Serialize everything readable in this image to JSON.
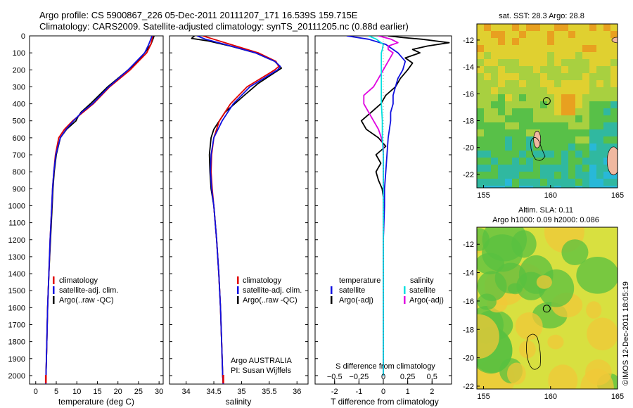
{
  "header": {
    "line1": "Argo profile: CS 5900867_226 05-Dec-2011 20111207_171 16.539S 159.715E",
    "line2": "Climatology: CARS2009. Satellite-adjusted climatology: synTS_20111205.nc (0.88d earlier)"
  },
  "footer": {
    "stamp": "©IMOS 12-Dec-2011 18:05:19",
    "argo_source": "Argo AUSTRALIA",
    "pi": "PI: Susan Wijffels"
  },
  "colors": {
    "climatology": "#e00000",
    "satellite": "#1010e0",
    "argo": "#000000",
    "sal_satellite": "#00e0e0",
    "sal_argo": "#e000e0"
  },
  "chart_data": [
    {
      "id": "temperature",
      "type": "line",
      "xlabel": "temperature (deg C)",
      "xlim": [
        -1.5,
        31
      ],
      "xticks": [
        0,
        5,
        10,
        15,
        20,
        25,
        30
      ],
      "ylim": [
        2050,
        0
      ],
      "yticks": [
        0,
        100,
        200,
        300,
        400,
        500,
        600,
        700,
        800,
        900,
        1000,
        1100,
        1200,
        1300,
        1400,
        1500,
        1600,
        1700,
        1800,
        1900,
        2000
      ],
      "legend": [
        "climatology",
        "satellite-adj. clim.",
        "Argo(..raw -QC)"
      ],
      "series": [
        {
          "name": "climatology",
          "depth": [
            0,
            50,
            100,
            200,
            300,
            400,
            450,
            500,
            550,
            600,
            700,
            800,
            900,
            1000,
            1200,
            1400,
            1600,
            1800,
            2000,
            2050
          ],
          "values": [
            28.5,
            28.0,
            27.0,
            23.0,
            18.0,
            14.0,
            11.5,
            9.0,
            7.0,
            5.6,
            4.8,
            4.4,
            4.1,
            3.9,
            3.5,
            3.2,
            2.9,
            2.7,
            2.5,
            2.45
          ]
        },
        {
          "name": "satellite-adj. clim.",
          "depth": [
            0,
            50,
            100,
            200,
            300,
            400,
            450,
            500,
            550,
            600,
            700,
            800,
            900,
            1000,
            1200,
            1400,
            1600,
            1800,
            2000,
            2050
          ],
          "values": [
            28.3,
            27.5,
            26.5,
            22.5,
            17.8,
            13.8,
            11.2,
            9.2,
            7.4,
            6.0,
            4.9,
            4.4,
            4.1,
            3.9,
            3.5,
            3.2,
            2.9,
            2.7,
            2.5,
            2.45
          ]
        },
        {
          "name": "Argo(..raw -QC)",
          "depth": [
            0,
            20,
            50,
            100,
            150,
            200,
            300,
            400,
            450,
            480,
            500,
            550,
            600,
            700,
            800,
            900,
            1000,
            1200,
            1400,
            1600,
            1800,
            2000,
            2050
          ],
          "values": [
            28.8,
            28.5,
            28.0,
            26.5,
            24.8,
            22.5,
            17.5,
            13.3,
            11.0,
            10.2,
            9.8,
            7.5,
            6.0,
            5.0,
            4.5,
            4.2,
            4.0,
            3.6,
            3.2,
            2.9,
            2.7,
            2.5,
            2.45
          ]
        }
      ]
    },
    {
      "id": "salinity",
      "type": "line",
      "xlabel": "salinity",
      "xlim": [
        33.7,
        36.2
      ],
      "xticks": [
        34,
        34.5,
        35,
        35.5,
        36
      ],
      "ylim": [
        2050,
        0
      ],
      "legend": [
        "climatology",
        "satellite-adj. clim.",
        "Argo(..raw -QC)"
      ],
      "series": [
        {
          "name": "climatology",
          "depth": [
            0,
            20,
            50,
            100,
            150,
            180,
            200,
            250,
            300,
            400,
            500,
            600,
            700,
            800,
            900,
            1000,
            1200,
            1400,
            1600,
            1800,
            2000,
            2050
          ],
          "values": [
            34.3,
            34.5,
            34.8,
            35.3,
            35.62,
            35.67,
            35.6,
            35.35,
            35.1,
            34.8,
            34.6,
            34.5,
            34.46,
            34.45,
            34.47,
            34.5,
            34.55,
            34.59,
            34.62,
            34.64,
            34.66,
            34.67
          ]
        },
        {
          "name": "satellite-adj. clim.",
          "depth": [
            0,
            20,
            50,
            100,
            150,
            180,
            200,
            250,
            300,
            400,
            500,
            600,
            700,
            800,
            900,
            1000,
            1200,
            1400,
            1600,
            1800,
            2000,
            2050
          ],
          "values": [
            34.2,
            34.35,
            34.7,
            35.25,
            35.6,
            35.7,
            35.65,
            35.4,
            35.15,
            34.85,
            34.65,
            34.5,
            34.45,
            34.44,
            34.46,
            34.5,
            34.55,
            34.59,
            34.62,
            34.64,
            34.66,
            34.67
          ]
        },
        {
          "name": "Argo(..raw -QC)",
          "depth": [
            0,
            15,
            30,
            60,
            100,
            150,
            190,
            220,
            280,
            350,
            450,
            550,
            600,
            700,
            800,
            900,
            1000,
            1200,
            1400,
            1600,
            1800,
            2000,
            2050
          ],
          "values": [
            34.15,
            34.1,
            34.4,
            34.8,
            35.25,
            35.6,
            35.72,
            35.58,
            35.3,
            35.05,
            34.7,
            34.5,
            34.45,
            34.42,
            34.43,
            34.45,
            34.5,
            34.55,
            34.59,
            34.62,
            34.64,
            34.66,
            34.67
          ]
        }
      ]
    },
    {
      "id": "differences",
      "type": "line",
      "xlabel": "T difference from climatology",
      "xlabel_top": "S difference from climatology",
      "xlim_T": [
        -2.8,
        2.8
      ],
      "xticks_T": [
        -2,
        -1,
        0,
        1,
        2
      ],
      "xticks_S": [
        -0.5,
        -0.25,
        0,
        0.25,
        0.5
      ],
      "ylim": [
        2050,
        0
      ],
      "legend_headers": [
        "temperature",
        "salinity"
      ],
      "legend": [
        "satellite",
        "Argo(-adj)",
        "satellite",
        "Argo(-adj)"
      ],
      "series": [
        {
          "name": "satellite",
          "quantity": "temperature",
          "depth": [
            0,
            20,
            50,
            100,
            150,
            200,
            250,
            300,
            350,
            400,
            450,
            500,
            550,
            600,
            700,
            800,
            900,
            1000,
            1200,
            1500,
            2000
          ],
          "values": [
            -1.5,
            -0.6,
            0.1,
            0.6,
            0.9,
            0.8,
            0.6,
            0.5,
            0.4,
            0.4,
            0.3,
            0.3,
            0.25,
            0.2,
            0.15,
            0.1,
            0.05,
            0.05,
            0.0,
            0.0,
            0.0
          ]
        },
        {
          "name": "Argo(-adj)",
          "quantity": "temperature",
          "depth": [
            0,
            10,
            20,
            40,
            60,
            80,
            100,
            130,
            160,
            200,
            250,
            300,
            350,
            400,
            450,
            500,
            550,
            600,
            650,
            700,
            750,
            800,
            850,
            900,
            950,
            1000,
            1200,
            1500,
            2000
          ],
          "values": [
            0.2,
            0.8,
            1.6,
            2.7,
            1.8,
            1.2,
            1.5,
            0.9,
            1.2,
            1.0,
            0.7,
            0.5,
            0.1,
            -0.1,
            -0.5,
            -0.9,
            -0.7,
            -0.2,
            0.1,
            -0.3,
            -0.1,
            -0.3,
            -0.2,
            -0.05,
            0.0,
            0.02,
            0.0,
            0.0,
            0.0
          ]
        },
        {
          "name": "satellite",
          "quantity": "salinity",
          "depth": [
            0,
            20,
            50,
            80,
            100,
            150,
            200,
            300,
            400,
            500,
            600,
            700,
            800,
            900,
            1000,
            1200,
            1500,
            2000
          ],
          "values": [
            -0.15,
            -0.07,
            0.0,
            -0.01,
            -0.02,
            -0.02,
            -0.02,
            -0.02,
            -0.02,
            -0.01,
            -0.01,
            0.0,
            0.0,
            0.0,
            0.0,
            0.0,
            0.0,
            0.0
          ]
        },
        {
          "name": "Argo(-adj)",
          "quantity": "salinity",
          "depth": [
            0,
            20,
            40,
            60,
            80,
            100,
            150,
            200,
            250,
            300,
            350,
            400,
            450,
            500,
            550,
            600,
            650,
            700,
            800,
            900,
            1000,
            1200,
            1500,
            2000
          ],
          "values": [
            -0.05,
            0.08,
            0.15,
            0.05,
            0.05,
            0.1,
            0.05,
            0.0,
            -0.05,
            -0.1,
            -0.2,
            -0.2,
            -0.15,
            -0.1,
            -0.05,
            -0.02,
            0.0,
            0.0,
            0.0,
            0.0,
            0.0,
            0.0,
            0.0,
            0.0
          ]
        }
      ]
    }
  ],
  "maps": {
    "sst": {
      "title": "sat. SST: 28.3  Argo: 28.8",
      "lon_ticks": [
        155,
        160,
        165
      ],
      "lat_ticks": [
        -12,
        -14,
        -16,
        -18,
        -20,
        -22
      ],
      "lon_range": [
        154.5,
        165
      ],
      "lat_range": [
        -10.8,
        -23
      ],
      "argo_position": {
        "lon": 159.715,
        "lat": -16.539
      }
    },
    "sla": {
      "title1": "Altim. SLA: 0.11",
      "title2": "Argo h1000: 0.09 h2000: 0.086",
      "lon_ticks": [
        155,
        160,
        165
      ],
      "lat_ticks": [
        -12,
        -14,
        -16,
        -18,
        -20,
        -22
      ],
      "lon_range": [
        154.5,
        165
      ],
      "lat_range": [
        -10.8,
        -22.2
      ],
      "argo_position": {
        "lon": 159.715,
        "lat": -16.539
      }
    }
  }
}
